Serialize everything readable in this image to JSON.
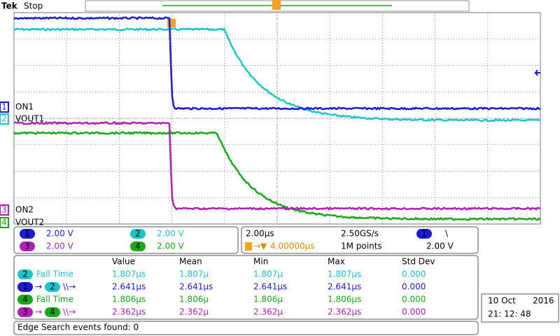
{
  "header": {
    "brand": "Tek",
    "status": "Stop"
  },
  "channels": [
    {
      "number": "1",
      "label": "ON1",
      "scale": "2.00 V",
      "color": "#1a1ad0"
    },
    {
      "number": "2",
      "label": "VOUT1",
      "scale": "2.00 V",
      "color": "#1cc4cc"
    },
    {
      "number": "3",
      "label": "ON2",
      "scale": "2.00 V",
      "color": "#b020b8"
    },
    {
      "number": "4",
      "label": "VOUT2",
      "scale": "2.00 V",
      "color": "#18a818"
    }
  ],
  "timebase": {
    "scale": "2.00µs",
    "sample_rate": "2.50GS/s",
    "trigger_source": "1",
    "trigger_slope": "\\",
    "trigger_position": "4.00000µs",
    "record_length": "1M points",
    "trigger_level": "2.00 V"
  },
  "measurements": {
    "columns": [
      "Value",
      "Mean",
      "Min",
      "Max",
      "Std Dev"
    ],
    "rows": [
      {
        "source": "2",
        "label": "Fall Time",
        "cells": [
          "1.807µs",
          "1.807µ",
          "1.807µ",
          "1.807µs",
          "0.000"
        ]
      },
      {
        "source": "1",
        "arrow": "→",
        "target": "2",
        "label": "\\\\→",
        "cells": [
          "2.641µs",
          "2.641µs",
          "2.641µs",
          "2.641µs",
          "0.000"
        ]
      },
      {
        "source": "4",
        "label": "Fall Time",
        "cells": [
          "1.806µs",
          "1.806µ",
          "1.806µ",
          "1.806µs",
          "0.000"
        ]
      },
      {
        "source": "3",
        "arrow": "→",
        "target": "4",
        "label": "\\\\→",
        "cells": [
          "2.362µs",
          "2.362µ",
          "2.362µ",
          "2.362µs",
          "0.000"
        ]
      }
    ]
  },
  "search": "Edge Search events found: 0",
  "datetime": {
    "date": "10 Oct",
    "year": "2016",
    "time": "21: 12: 48"
  }
}
